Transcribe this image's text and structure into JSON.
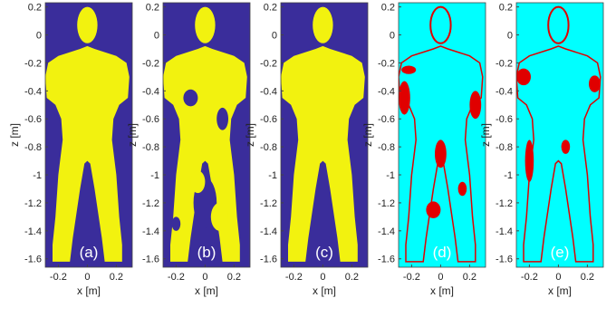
{
  "chart_data": [
    {
      "type": "image",
      "panel_label": "(a)",
      "xlabel": "x [m]",
      "ylabel": "z [m]",
      "xlim": [
        -0.29,
        0.31
      ],
      "ylim": [
        -1.66,
        0.23
      ],
      "xticks": [
        -0.2,
        0,
        0.2
      ],
      "yticks": [
        0.2,
        0,
        -0.2,
        -0.4,
        -0.6,
        -0.8,
        -1,
        -1.2,
        -1.4,
        -1.6
      ],
      "background_color": "#3a2d9b",
      "foreground_color": "#f2f20f",
      "style": "mask"
    },
    {
      "type": "image",
      "panel_label": "(b)",
      "xlabel": "x [m]",
      "ylabel": "z [m]",
      "xlim": [
        -0.29,
        0.31
      ],
      "ylim": [
        -1.66,
        0.23
      ],
      "xticks": [
        -0.2,
        0,
        0.2
      ],
      "yticks": [
        0.2,
        0,
        -0.2,
        -0.4,
        -0.6,
        -0.8,
        -1,
        -1.2,
        -1.4,
        -1.6
      ],
      "background_color": "#3a2d9b",
      "foreground_color": "#f2f20f",
      "style": "noisy-mask"
    },
    {
      "type": "image",
      "panel_label": "(c)",
      "xlabel": "x [m]",
      "ylabel": "z [m]",
      "xlim": [
        -0.29,
        0.31
      ],
      "ylim": [
        -1.66,
        0.23
      ],
      "xticks": [
        -0.2,
        0,
        0.2
      ],
      "yticks": [
        0.2,
        0,
        -0.2,
        -0.4,
        -0.6,
        -0.8,
        -1,
        -1.2,
        -1.4,
        -1.6
      ],
      "background_color": "#3a2d9b",
      "foreground_color": "#f2f20f",
      "style": "mask"
    },
    {
      "type": "image",
      "panel_label": "(d)",
      "xlabel": "x [m]",
      "ylabel": "z [m]",
      "xlim": [
        -0.29,
        0.31
      ],
      "ylim": [
        -1.66,
        0.23
      ],
      "xticks": [
        -0.2,
        0,
        0.2
      ],
      "yticks": [
        0.2,
        0,
        -0.2,
        -0.4,
        -0.6,
        -0.8,
        -1,
        -1.2,
        -1.4,
        -1.6
      ],
      "background_color": "#00ffff",
      "foreground_color": "#e00000",
      "style": "error-heavy"
    },
    {
      "type": "image",
      "panel_label": "(e)",
      "xlabel": "x [m]",
      "ylabel": "z [m]",
      "xlim": [
        -0.29,
        0.31
      ],
      "ylim": [
        -1.66,
        0.23
      ],
      "xticks": [
        -0.2,
        0,
        0.2
      ],
      "yticks": [
        0.2,
        0,
        -0.2,
        -0.4,
        -0.6,
        -0.8,
        -1,
        -1.2,
        -1.4,
        -1.6
      ],
      "background_color": "#00ffff",
      "foreground_color": "#e00000",
      "style": "error"
    }
  ]
}
